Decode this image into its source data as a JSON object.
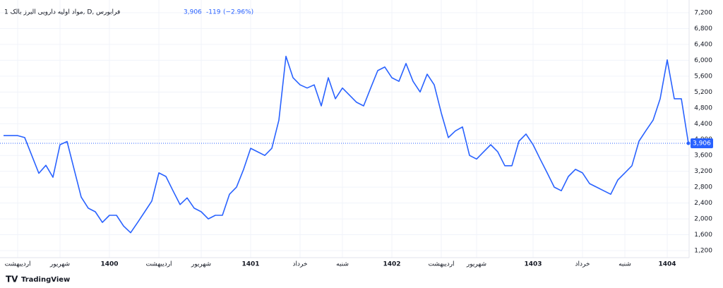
{
  "chart_data": {
    "type": "line",
    "title": "مواد اولیه دارویی البرز بالک 1, D, فرابورس",
    "last": "3,906",
    "change": "-119",
    "change_pct": "(−2.96%)",
    "brand": "TradingView",
    "series": [
      {
        "name": "مواد اولیه دارویی البرز بالک",
        "color": "#2962ff",
        "values": [
          4100,
          4100,
          4100,
          4050,
          3600,
          3150,
          3350,
          3050,
          3870,
          3950,
          3250,
          2550,
          2270,
          2180,
          1910,
          2090,
          2090,
          1820,
          1650,
          1910,
          2180,
          2450,
          3160,
          3070,
          2710,
          2360,
          2530,
          2270,
          2180,
          2000,
          2090,
          2090,
          2620,
          2800,
          3250,
          3780,
          3690,
          3600,
          3780,
          4490,
          6100,
          5560,
          5380,
          5300,
          5380,
          4850,
          5560,
          5030,
          5300,
          5120,
          4940,
          4850,
          5300,
          5740,
          5830,
          5560,
          5470,
          5920,
          5470,
          5200,
          5650,
          5380,
          4670,
          4050,
          4220,
          4320,
          3600,
          3510,
          3690,
          3870,
          3690,
          3340,
          3340,
          3960,
          4140,
          3870,
          3510,
          3160,
          2800,
          2710,
          3070,
          3250,
          3160,
          2890,
          2800,
          2710,
          2620,
          2980,
          3160,
          3340,
          3960,
          4230,
          4490,
          5030,
          6010,
          5030,
          5030,
          3906
        ]
      }
    ],
    "x": [
      0,
      1,
      2,
      3,
      4,
      5,
      6,
      7,
      8,
      9,
      10,
      11,
      12,
      13,
      14,
      15,
      16,
      17,
      18,
      19,
      20,
      21,
      22,
      23,
      24,
      25,
      26,
      27,
      28,
      29,
      30,
      31,
      32,
      33,
      34,
      35,
      36,
      37,
      38,
      39,
      40,
      41,
      42,
      43,
      44,
      45,
      46,
      47,
      48,
      49,
      50,
      51,
      52,
      53,
      54,
      55,
      56,
      57,
      58,
      59,
      60,
      61,
      62,
      63,
      64,
      65,
      66,
      67,
      68,
      69,
      70,
      71,
      72,
      73,
      74,
      75,
      76,
      77,
      78,
      79,
      80,
      81,
      82,
      83,
      84,
      85,
      86,
      87,
      88,
      89,
      90,
      91,
      92,
      93,
      94,
      95,
      96,
      97
    ],
    "xlim": [
      0,
      97
    ],
    "xticks": [
      {
        "value": 2,
        "label": "اردیبهشت"
      },
      {
        "value": 8,
        "label": "شهریور"
      },
      {
        "value": 15,
        "label": "1400"
      },
      {
        "value": 22,
        "label": "اردیبهشت"
      },
      {
        "value": 28,
        "label": "شهریور"
      },
      {
        "value": 35,
        "label": "1401"
      },
      {
        "value": 42,
        "label": "خرداد"
      },
      {
        "value": 48,
        "label": "شنبه"
      },
      {
        "value": 55,
        "label": "1402"
      },
      {
        "value": 62,
        "label": "اردیبهشت"
      },
      {
        "value": 67,
        "label": "شهریور"
      },
      {
        "value": 75,
        "label": "1403"
      },
      {
        "value": 82,
        "label": "خرداد"
      },
      {
        "value": 88,
        "label": "شنبه"
      },
      {
        "value": 94,
        "label": "1404"
      }
    ],
    "ylim": [
      1200,
      7200
    ],
    "yticks": [
      {
        "value": 1200,
        "label": "1,200"
      },
      {
        "value": 1600,
        "label": "1,600"
      },
      {
        "value": 2000,
        "label": "2,000"
      },
      {
        "value": 2400,
        "label": "2,400"
      },
      {
        "value": 2800,
        "label": "2,800"
      },
      {
        "value": 3200,
        "label": "3,200"
      },
      {
        "value": 3600,
        "label": "3,600"
      },
      {
        "value": 4000,
        "label": "4,000"
      },
      {
        "value": 4400,
        "label": "4,400"
      },
      {
        "value": 4800,
        "label": "4,800"
      },
      {
        "value": 5200,
        "label": "5,200"
      },
      {
        "value": 5600,
        "label": "5,600"
      },
      {
        "value": 6000,
        "label": "6,000"
      },
      {
        "value": 6400,
        "label": "6,400"
      },
      {
        "value": 6800,
        "label": "6,800"
      },
      {
        "value": 7200,
        "label": "7,200"
      }
    ],
    "grid": true
  }
}
